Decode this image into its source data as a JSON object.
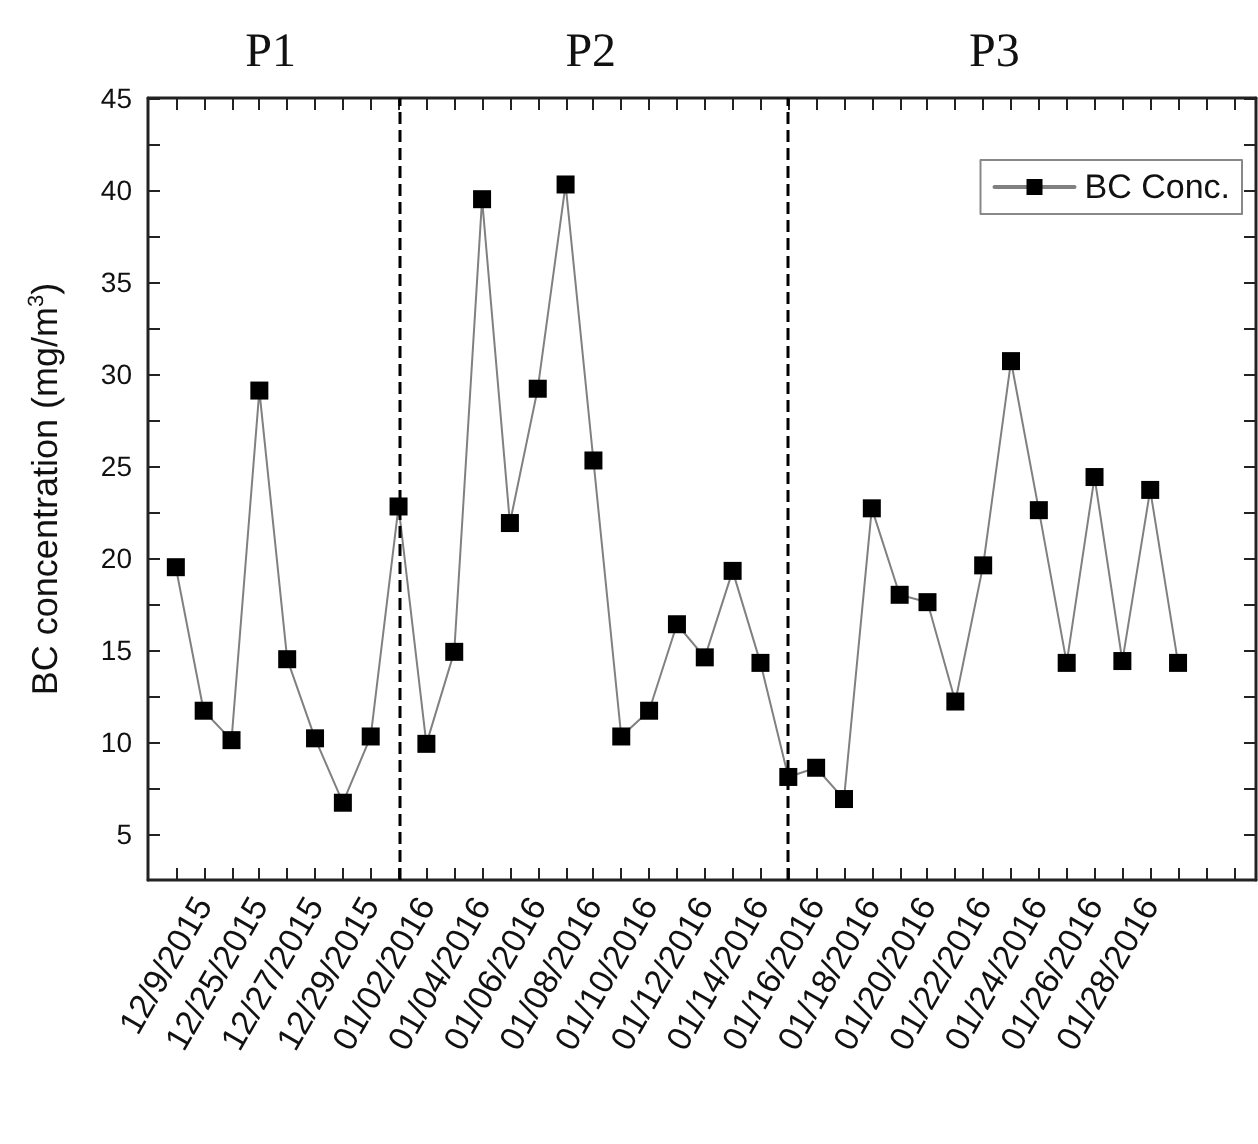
{
  "chart_data": {
    "type": "line",
    "ylabel": "BC concentration (mg/m$^{3}$)",
    "categories": [
      null,
      "12/9/2015",
      null,
      "12/25/2015",
      null,
      "12/27/2015",
      null,
      "12/29/2015",
      null,
      "01/02/2016",
      null,
      "01/04/2016",
      null,
      "01/06/2016",
      null,
      "01/08/2016",
      null,
      "01/10/2016",
      null,
      "01/12/2016",
      null,
      "01/14/2016",
      null,
      "01/16/2016",
      null,
      "01/18/2016",
      null,
      "01/20/2016",
      null,
      "01/22/2016",
      null,
      "01/24/2016",
      null,
      "01/26/2016",
      null,
      "01/28/2016",
      null
    ],
    "series": [
      {
        "name": "BC Conc.",
        "color": "#000000",
        "values": [
          19.5,
          11.7,
          10.1,
          29.1,
          14.5,
          10.2,
          6.7,
          10.3,
          22.8,
          9.9,
          14.9,
          39.5,
          21.9,
          29.2,
          40.3,
          25.3,
          10.3,
          11.7,
          16.4,
          14.6,
          19.3,
          14.3,
          8.1,
          8.6,
          6.9,
          22.7,
          18.0,
          17.6,
          12.2,
          19.6,
          30.7,
          22.6,
          14.3,
          24.4,
          14.4,
          23.7,
          14.3
        ]
      }
    ],
    "ylim": [
      2.5,
      45
    ],
    "yticks": [
      5,
      {
        "value": 7.5,
        "label": null
      },
      10,
      {
        "value": 12.5,
        "label": null
      },
      15,
      {
        "value": 17.5,
        "label": null
      },
      20,
      {
        "value": 22.5,
        "label": null
      },
      25,
      {
        "value": 27.5,
        "label": null
      },
      30,
      {
        "value": 32.5,
        "label": null
      },
      35,
      {
        "value": 37.5,
        "label": null
      },
      40,
      {
        "value": 42.5,
        "label": null
      },
      45
    ],
    "annotations": [
      "P1",
      "P2",
      "P3"
    ],
    "legend": "top right",
    "marker": "square",
    "line_style": "solid"
  }
}
